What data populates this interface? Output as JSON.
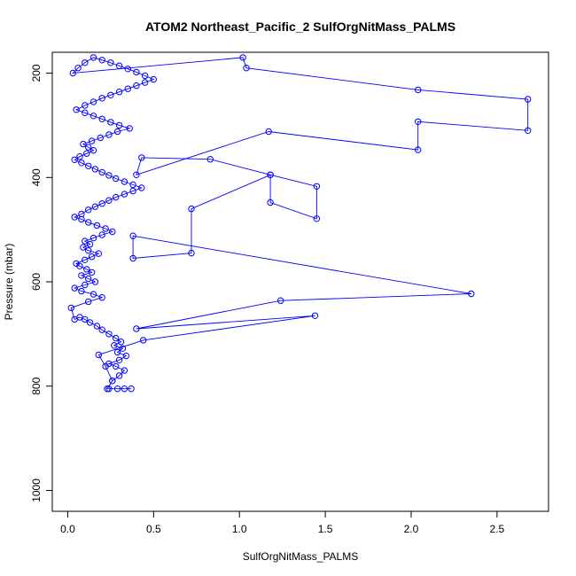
{
  "chart_data": {
    "type": "line",
    "title": "ATOM2 Northeast_Pacific_2 SulfOrgNitMass_PALMS",
    "xlabel": "SulfOrgNitMass_PALMS",
    "ylabel": "Pressure (mbar)",
    "xlim": [
      -0.09,
      2.8
    ],
    "ylim": [
      1040,
      160
    ],
    "y_reversed": true,
    "grid": false,
    "legend": "none",
    "x_ticks": [
      0.0,
      0.5,
      1.0,
      1.5,
      2.0,
      2.5
    ],
    "x_tick_labels": [
      "0.0",
      "0.5",
      "1.0",
      "1.5",
      "2.0",
      "2.5"
    ],
    "y_ticks": [
      200,
      400,
      600,
      800,
      1000
    ],
    "y_tick_labels": [
      "200",
      "400",
      "600",
      "800",
      "1000"
    ],
    "series": [
      {
        "color": "#0000ff",
        "marker": "open-circle",
        "points": [
          [
            0.37,
            805
          ],
          [
            0.33,
            805
          ],
          [
            0.29,
            805
          ],
          [
            0.24,
            805
          ],
          [
            0.23,
            805
          ],
          [
            0.26,
            790
          ],
          [
            0.3,
            780
          ],
          [
            0.33,
            770
          ],
          [
            0.28,
            762
          ],
          [
            0.24,
            757
          ],
          [
            0.3,
            750
          ],
          [
            0.34,
            742
          ],
          [
            0.29,
            735
          ],
          [
            0.32,
            728
          ],
          [
            0.27,
            722
          ],
          [
            0.31,
            715
          ],
          [
            0.28,
            708
          ],
          [
            0.24,
            700
          ],
          [
            0.2,
            692
          ],
          [
            0.17,
            685
          ],
          [
            0.13,
            678
          ],
          [
            0.1,
            672
          ],
          [
            0.07,
            668
          ],
          [
            0.04,
            672
          ],
          [
            0.02,
            650
          ],
          [
            0.12,
            638
          ],
          [
            0.2,
            630
          ],
          [
            0.15,
            624
          ],
          [
            0.08,
            618
          ],
          [
            0.04,
            612
          ],
          [
            0.1,
            606
          ],
          [
            0.16,
            600
          ],
          [
            0.12,
            594
          ],
          [
            0.08,
            588
          ],
          [
            0.14,
            582
          ],
          [
            0.11,
            576
          ],
          [
            0.07,
            570
          ],
          [
            0.05,
            565
          ],
          [
            0.1,
            558
          ],
          [
            0.14,
            552
          ],
          [
            0.18,
            546
          ],
          [
            0.12,
            540
          ],
          [
            0.09,
            534
          ],
          [
            0.13,
            528
          ],
          [
            0.1,
            522
          ],
          [
            0.15,
            516
          ],
          [
            0.2,
            510
          ],
          [
            0.26,
            504
          ],
          [
            0.22,
            498
          ],
          [
            0.17,
            492
          ],
          [
            0.12,
            486
          ],
          [
            0.08,
            480
          ],
          [
            0.04,
            476
          ],
          [
            0.08,
            470
          ],
          [
            0.12,
            462
          ],
          [
            0.16,
            456
          ],
          [
            0.2,
            450
          ],
          [
            0.24,
            444
          ],
          [
            0.28,
            438
          ],
          [
            0.33,
            432
          ],
          [
            0.38,
            426
          ],
          [
            0.43,
            420
          ],
          [
            0.38,
            414
          ],
          [
            0.33,
            408
          ],
          [
            0.28,
            402
          ],
          [
            0.24,
            396
          ],
          [
            0.2,
            390
          ],
          [
            0.16,
            384
          ],
          [
            0.12,
            378
          ],
          [
            0.08,
            372
          ],
          [
            0.04,
            366
          ],
          [
            0.07,
            360
          ],
          [
            0.11,
            354
          ],
          [
            0.15,
            348
          ],
          [
            0.12,
            342
          ],
          [
            0.09,
            336
          ],
          [
            0.14,
            330
          ],
          [
            0.19,
            324
          ],
          [
            0.24,
            318
          ],
          [
            0.29,
            312
          ],
          [
            0.36,
            306
          ],
          [
            0.3,
            300
          ],
          [
            0.25,
            294
          ],
          [
            0.2,
            288
          ],
          [
            0.15,
            282
          ],
          [
            0.1,
            276
          ],
          [
            0.05,
            270
          ],
          [
            0.1,
            262
          ],
          [
            0.15,
            255
          ],
          [
            0.2,
            248
          ],
          [
            0.25,
            242
          ],
          [
            0.3,
            236
          ],
          [
            0.35,
            230
          ],
          [
            0.4,
            224
          ],
          [
            0.45,
            218
          ],
          [
            0.5,
            212
          ],
          [
            0.45,
            205
          ],
          [
            0.4,
            198
          ],
          [
            0.35,
            192
          ],
          [
            0.3,
            186
          ],
          [
            0.25,
            180
          ],
          [
            0.2,
            175
          ],
          [
            0.15,
            170
          ],
          [
            0.1,
            180
          ],
          [
            0.06,
            190
          ],
          [
            0.03,
            200
          ],
          [
            1.02,
            170
          ],
          [
            1.04,
            190
          ],
          [
            2.04,
            232
          ],
          [
            2.68,
            250
          ],
          [
            2.68,
            310
          ],
          [
            2.04,
            293
          ],
          [
            2.04,
            347
          ],
          [
            1.17,
            312
          ],
          [
            0.4,
            395
          ],
          [
            0.43,
            362
          ],
          [
            0.83,
            365
          ],
          [
            1.18,
            395
          ],
          [
            1.45,
            417
          ],
          [
            1.45,
            479
          ],
          [
            1.18,
            448
          ],
          [
            1.18,
            395
          ],
          [
            0.72,
            460
          ],
          [
            0.72,
            545
          ],
          [
            0.38,
            555
          ],
          [
            0.38,
            512
          ],
          [
            2.35,
            623
          ],
          [
            1.24,
            636
          ],
          [
            0.4,
            690
          ],
          [
            1.44,
            665
          ],
          [
            0.44,
            712
          ],
          [
            0.18,
            740
          ],
          [
            0.22,
            762
          ],
          [
            0.26,
            790
          ]
        ]
      }
    ]
  }
}
